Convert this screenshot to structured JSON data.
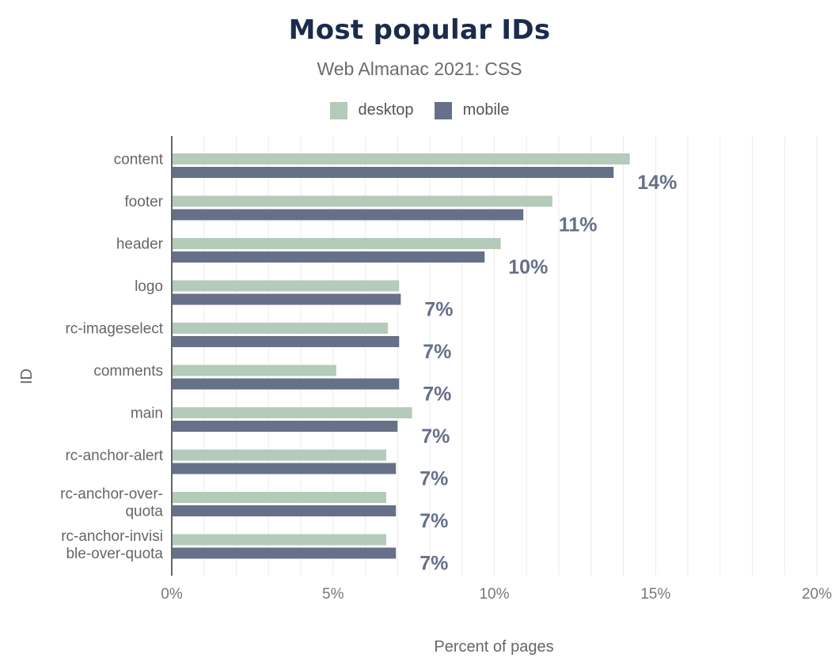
{
  "title": "Most popular IDs",
  "subtitle": "Web Almanac 2021: CSS",
  "colors": {
    "desktop": "#b3cbb8",
    "mobile": "#667089",
    "label": "#667089",
    "grid": "#ebebeb",
    "axis": "#333333"
  },
  "chart_data": {
    "type": "bar",
    "orientation": "horizontal",
    "title": "Most popular IDs",
    "subtitle": "Web Almanac 2021: CSS",
    "xlabel": "Percent of pages",
    "ylabel": "ID",
    "xlim": [
      0,
      20
    ],
    "xticks": [
      "0%",
      "5%",
      "10%",
      "15%",
      "20%"
    ],
    "grid": true,
    "legend_position": "top-center",
    "categories": [
      [
        "content"
      ],
      [
        "footer"
      ],
      [
        "header"
      ],
      [
        "logo"
      ],
      [
        "rc-imageselect"
      ],
      [
        "comments"
      ],
      [
        "main"
      ],
      [
        "rc-anchor-alert"
      ],
      [
        "rc-anchor-over-",
        "quota"
      ],
      [
        "rc-anchor-invisi",
        "ble-over-quota"
      ]
    ],
    "series": [
      {
        "name": "desktop",
        "color": "#b3cbb8",
        "values": [
          14.2,
          11.8,
          10.2,
          7.05,
          6.7,
          5.1,
          7.45,
          6.65,
          6.65,
          6.65
        ]
      },
      {
        "name": "mobile",
        "color": "#667089",
        "values": [
          13.7,
          10.9,
          9.7,
          7.1,
          7.05,
          7.05,
          7.0,
          6.95,
          6.95,
          6.95
        ]
      }
    ],
    "data_labels": [
      "14%",
      "11%",
      "10%",
      "7%",
      "7%",
      "7%",
      "7%",
      "7%",
      "7%",
      "7%"
    ]
  }
}
